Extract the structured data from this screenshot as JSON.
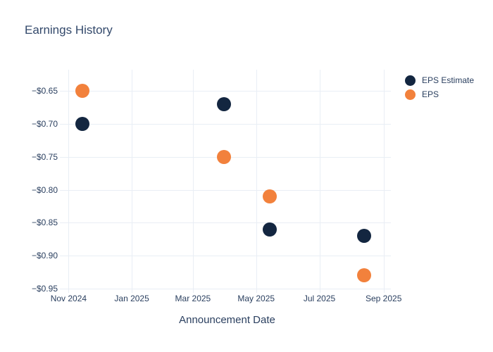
{
  "chart_data": {
    "type": "scatter",
    "title": "Earnings History",
    "xlabel": "Announcement Date",
    "ylabel": "",
    "grid": true,
    "legend_position": "top-right",
    "x_range": [
      "2024-10-27",
      "2025-09-08"
    ],
    "y_range": [
      -0.95,
      -0.618
    ],
    "x_ticks": [
      {
        "label": "Nov 2024",
        "date": "2024-11-01"
      },
      {
        "label": "Jan 2025",
        "date": "2025-01-01"
      },
      {
        "label": "Mar 2025",
        "date": "2025-03-01"
      },
      {
        "label": "May 2025",
        "date": "2025-05-01"
      },
      {
        "label": "Jul 2025",
        "date": "2025-07-01"
      },
      {
        "label": "Sep 2025",
        "date": "2025-09-01"
      }
    ],
    "y_ticks": [
      {
        "label": "−$0.65",
        "value": -0.65
      },
      {
        "label": "−$0.70",
        "value": -0.7
      },
      {
        "label": "−$0.75",
        "value": -0.75
      },
      {
        "label": "−$0.80",
        "value": -0.8
      },
      {
        "label": "−$0.85",
        "value": -0.85
      },
      {
        "label": "−$0.90",
        "value": -0.9
      },
      {
        "label": "−$0.95",
        "value": -0.95
      }
    ],
    "series": [
      {
        "name": "EPS Estimate",
        "color": "#132640",
        "x": [
          "2024-11-14",
          "2025-03-31",
          "2025-05-14",
          "2025-08-13"
        ],
        "values": [
          -0.7,
          -0.67,
          -0.86,
          -0.87
        ]
      },
      {
        "name": "EPS",
        "color": "#f2813c",
        "x": [
          "2024-11-14",
          "2025-03-31",
          "2025-05-14",
          "2025-08-13"
        ],
        "values": [
          -0.65,
          -0.75,
          -0.81,
          -0.93
        ]
      }
    ]
  },
  "colors": {
    "grid": "#e9eef5",
    "text": "#2a3f5f",
    "title": "#33496b",
    "background": "#ffffff"
  }
}
